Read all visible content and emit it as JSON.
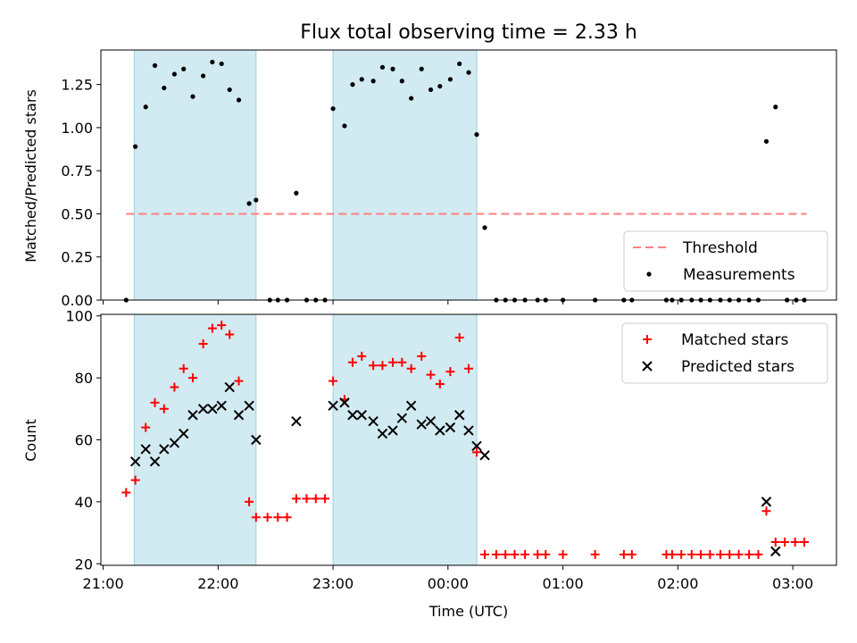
{
  "chart_data": {
    "type": "scatter",
    "title": "Flux total observing time = 2.33 h",
    "xlabel": "Time (UTC)",
    "xlim_hours": [
      20.98,
      27.38
    ],
    "x_tick_labels": [
      "21:00",
      "22:00",
      "23:00",
      "00:00",
      "01:00",
      "02:00",
      "03:00"
    ],
    "x_tick_values": [
      21,
      22,
      23,
      24,
      25,
      26,
      27
    ],
    "shaded_intervals": [
      [
        21.27,
        22.33
      ],
      [
        23.0,
        24.25
      ]
    ],
    "shade_color": "#add8e6",
    "panels": [
      {
        "ylabel": "Matched/Predicted stars",
        "ylim": [
          0,
          1.45
        ],
        "yticks": [
          0,
          0.25,
          0.5,
          0.75,
          1.0,
          1.25
        ],
        "ytick_labels": [
          "0.00",
          "0.25",
          "0.50",
          "0.75",
          "1.00",
          "1.25"
        ],
        "threshold": {
          "name": "Threshold",
          "value": 0.5,
          "x_range": [
            21.2,
            27.12
          ],
          "color": "#ff7f7f"
        },
        "series": [
          {
            "name": "Measurements",
            "marker": "dot",
            "color": "#000000",
            "points": [
              [
                21.2,
                0.0
              ],
              [
                21.28,
                0.89
              ],
              [
                21.37,
                1.12
              ],
              [
                21.45,
                1.36
              ],
              [
                21.53,
                1.23
              ],
              [
                21.62,
                1.31
              ],
              [
                21.7,
                1.34
              ],
              [
                21.78,
                1.18
              ],
              [
                21.87,
                1.3
              ],
              [
                21.95,
                1.38
              ],
              [
                22.03,
                1.37
              ],
              [
                22.1,
                1.22
              ],
              [
                22.18,
                1.16
              ],
              [
                22.27,
                0.56
              ],
              [
                22.33,
                0.58
              ],
              [
                22.45,
                0.0
              ],
              [
                22.52,
                0.0
              ],
              [
                22.6,
                0.0
              ],
              [
                22.68,
                0.62
              ],
              [
                22.77,
                0.0
              ],
              [
                22.85,
                0.0
              ],
              [
                22.93,
                0.0
              ],
              [
                23.0,
                1.11
              ],
              [
                23.1,
                1.01
              ],
              [
                23.17,
                1.25
              ],
              [
                23.25,
                1.28
              ],
              [
                23.35,
                1.27
              ],
              [
                23.43,
                1.35
              ],
              [
                23.52,
                1.34
              ],
              [
                23.6,
                1.27
              ],
              [
                23.68,
                1.17
              ],
              [
                23.77,
                1.34
              ],
              [
                23.85,
                1.22
              ],
              [
                23.93,
                1.24
              ],
              [
                24.02,
                1.28
              ],
              [
                24.1,
                1.37
              ],
              [
                24.18,
                1.32
              ],
              [
                24.25,
                0.96
              ],
              [
                24.32,
                0.42
              ],
              [
                24.42,
                0.0
              ],
              [
                24.5,
                0.0
              ],
              [
                24.58,
                0.0
              ],
              [
                24.67,
                0.0
              ],
              [
                24.78,
                0.0
              ],
              [
                24.85,
                0.0
              ],
              [
                25.0,
                0.0
              ],
              [
                25.28,
                0.0
              ],
              [
                25.53,
                0.0
              ],
              [
                25.6,
                0.0
              ],
              [
                25.9,
                0.0
              ],
              [
                25.95,
                0.0
              ],
              [
                26.03,
                0.0
              ],
              [
                26.12,
                0.0
              ],
              [
                26.2,
                0.0
              ],
              [
                26.28,
                0.0
              ],
              [
                26.37,
                0.0
              ],
              [
                26.45,
                0.0
              ],
              [
                26.53,
                0.0
              ],
              [
                26.62,
                0.0
              ],
              [
                26.7,
                0.0
              ],
              [
                26.77,
                0.92
              ],
              [
                26.85,
                1.12
              ],
              [
                26.95,
                0.0
              ],
              [
                27.03,
                0.0
              ],
              [
                27.1,
                0.0
              ]
            ]
          }
        ],
        "legend": [
          "Threshold",
          "Measurements"
        ],
        "legend_position": "lower-right"
      },
      {
        "ylabel": "Count",
        "ylim": [
          19.5,
          100.5
        ],
        "yticks": [
          20,
          40,
          60,
          80,
          100
        ],
        "ytick_labels": [
          "20",
          "40",
          "60",
          "80",
          "100"
        ],
        "series": [
          {
            "name": "Matched stars",
            "marker": "plus",
            "color": "#ff0000",
            "points": [
              [
                21.2,
                43
              ],
              [
                21.28,
                47
              ],
              [
                21.37,
                64
              ],
              [
                21.45,
                72
              ],
              [
                21.53,
                70
              ],
              [
                21.62,
                77
              ],
              [
                21.7,
                83
              ],
              [
                21.78,
                80
              ],
              [
                21.87,
                91
              ],
              [
                21.95,
                96
              ],
              [
                22.03,
                97
              ],
              [
                22.1,
                94
              ],
              [
                22.18,
                79
              ],
              [
                22.27,
                40
              ],
              [
                22.33,
                35
              ],
              [
                22.43,
                35
              ],
              [
                22.52,
                35
              ],
              [
                22.6,
                35
              ],
              [
                22.68,
                41
              ],
              [
                22.77,
                41
              ],
              [
                22.85,
                41
              ],
              [
                22.93,
                41
              ],
              [
                23.0,
                79
              ],
              [
                23.1,
                73
              ],
              [
                23.17,
                85
              ],
              [
                23.25,
                87
              ],
              [
                23.35,
                84
              ],
              [
                23.43,
                84
              ],
              [
                23.52,
                85
              ],
              [
                23.6,
                85
              ],
              [
                23.68,
                83
              ],
              [
                23.77,
                87
              ],
              [
                23.85,
                81
              ],
              [
                23.93,
                78
              ],
              [
                24.02,
                82
              ],
              [
                24.1,
                93
              ],
              [
                24.18,
                83
              ],
              [
                24.25,
                56
              ],
              [
                24.32,
                23
              ],
              [
                24.42,
                23
              ],
              [
                24.5,
                23
              ],
              [
                24.58,
                23
              ],
              [
                24.67,
                23
              ],
              [
                24.78,
                23
              ],
              [
                24.85,
                23
              ],
              [
                25.0,
                23
              ],
              [
                25.28,
                23
              ],
              [
                25.53,
                23
              ],
              [
                25.6,
                23
              ],
              [
                25.9,
                23
              ],
              [
                25.95,
                23
              ],
              [
                26.03,
                23
              ],
              [
                26.12,
                23
              ],
              [
                26.2,
                23
              ],
              [
                26.28,
                23
              ],
              [
                26.37,
                23
              ],
              [
                26.45,
                23
              ],
              [
                26.53,
                23
              ],
              [
                26.62,
                23
              ],
              [
                26.7,
                23
              ],
              [
                26.77,
                37
              ],
              [
                26.85,
                27
              ],
              [
                26.93,
                27
              ],
              [
                27.02,
                27
              ],
              [
                27.1,
                27
              ]
            ]
          },
          {
            "name": "Predicted stars",
            "marker": "x",
            "color": "#000000",
            "points": [
              [
                21.28,
                53
              ],
              [
                21.37,
                57
              ],
              [
                21.45,
                53
              ],
              [
                21.53,
                57
              ],
              [
                21.62,
                59
              ],
              [
                21.7,
                62
              ],
              [
                21.78,
                68
              ],
              [
                21.87,
                70
              ],
              [
                21.95,
                70
              ],
              [
                22.03,
                71
              ],
              [
                22.1,
                77
              ],
              [
                22.18,
                68
              ],
              [
                22.27,
                71
              ],
              [
                22.33,
                60
              ],
              [
                22.68,
                66
              ],
              [
                23.0,
                71
              ],
              [
                23.1,
                72
              ],
              [
                23.17,
                68
              ],
              [
                23.25,
                68
              ],
              [
                23.35,
                66
              ],
              [
                23.43,
                62
              ],
              [
                23.52,
                63
              ],
              [
                23.6,
                67
              ],
              [
                23.68,
                71
              ],
              [
                23.77,
                65
              ],
              [
                23.85,
                66
              ],
              [
                23.93,
                63
              ],
              [
                24.02,
                64
              ],
              [
                24.1,
                68
              ],
              [
                24.18,
                63
              ],
              [
                24.25,
                58
              ],
              [
                24.32,
                55
              ],
              [
                26.77,
                40
              ],
              [
                26.85,
                24
              ]
            ]
          }
        ],
        "legend": [
          "Matched stars",
          "Predicted stars"
        ],
        "legend_position": "upper-right"
      }
    ]
  }
}
